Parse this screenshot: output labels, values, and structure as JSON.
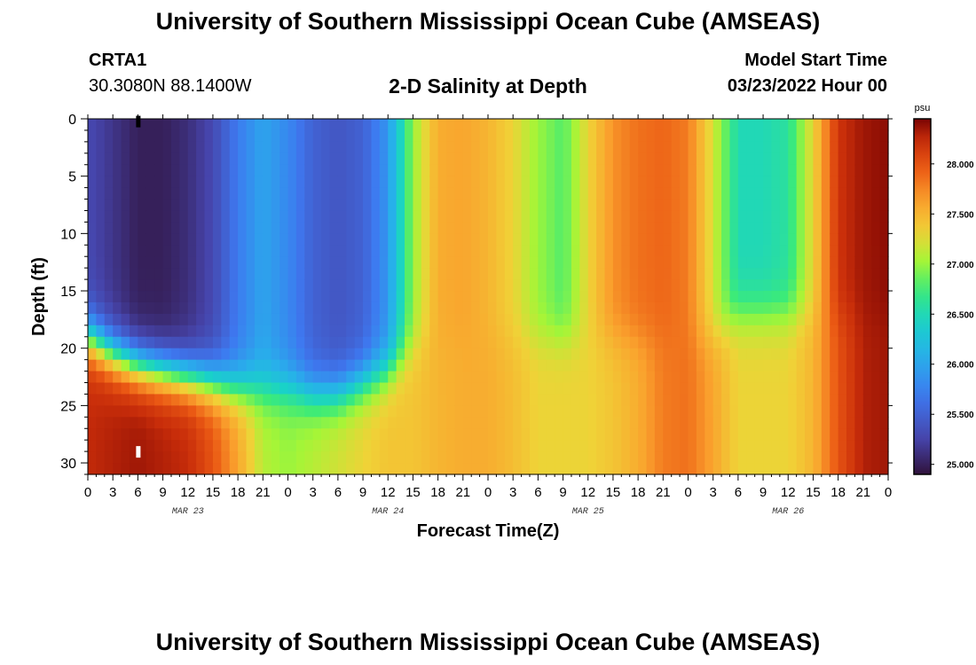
{
  "header": {
    "main_title": "University of Southern Mississippi Ocean Cube (AMSEAS)",
    "station_id": "CRTA1",
    "station_coords": "30.3080N  88.1400W",
    "subtitle": "2-D Salinity at Depth",
    "model_start_label": "Model Start Time",
    "model_start_value": "03/23/2022 Hour 00"
  },
  "footer": {
    "title": "University of Southern Mississippi Ocean Cube (AMSEAS)"
  },
  "chart_data": {
    "type": "heatmap",
    "title": "2-D Salinity at Depth",
    "xlabel": "Forecast Time(Z)",
    "ylabel": "Depth (ft)",
    "x_range_hours": [
      0,
      96
    ],
    "x_tick_hours": [
      0,
      3,
      6,
      9,
      12,
      15,
      18,
      21,
      24,
      27,
      30,
      33,
      36,
      39,
      42,
      45,
      48,
      51,
      54,
      57,
      60,
      63,
      66,
      69,
      72,
      75,
      78,
      81,
      84,
      87,
      90,
      93,
      96
    ],
    "x_tick_labels": [
      "0",
      "3",
      "6",
      "9",
      "12",
      "15",
      "18",
      "21",
      "0",
      "3",
      "6",
      "9",
      "12",
      "15",
      "18",
      "21",
      "0",
      "3",
      "6",
      "9",
      "12",
      "15",
      "18",
      "21",
      "0",
      "3",
      "6",
      "9",
      "12",
      "15",
      "18",
      "21",
      "0"
    ],
    "date_labels": [
      {
        "label": "MAR 23",
        "hour": 12
      },
      {
        "label": "MAR 24",
        "hour": 36
      },
      {
        "label": "MAR 25",
        "hour": 60
      },
      {
        "label": "MAR 26",
        "hour": 84
      }
    ],
    "ylim": [
      0,
      31
    ],
    "y_ticks": [
      0,
      5,
      10,
      15,
      20,
      25,
      30
    ],
    "y_tick_labels": [
      "0",
      "5",
      "10",
      "15",
      "20",
      "25",
      "30"
    ],
    "colorbar": {
      "unit": "psu",
      "min": 24.9,
      "max": 28.45,
      "ticks": [
        25.0,
        25.5,
        26.0,
        26.5,
        27.0,
        27.5,
        28.0
      ],
      "tick_labels": [
        "25.000",
        "25.500",
        "26.000",
        "26.500",
        "27.000",
        "27.500",
        "28.000"
      ]
    },
    "time_hours": [
      0,
      3,
      6,
      9,
      12,
      15,
      18,
      21,
      24,
      27,
      30,
      33,
      36,
      39,
      42,
      45,
      48,
      51,
      54,
      57,
      60,
      63,
      66,
      69,
      72,
      75,
      78,
      81,
      84,
      87,
      90,
      93,
      96
    ],
    "depth_ft": [
      0,
      2,
      4,
      6,
      8,
      10,
      12,
      14,
      16,
      18,
      20,
      22,
      24,
      26,
      28,
      30,
      31
    ],
    "salinity_surface_psu": [
      25.3,
      25.15,
      25.0,
      25.0,
      25.1,
      25.3,
      25.7,
      26.0,
      25.8,
      25.5,
      25.4,
      25.5,
      25.9,
      27.0,
      27.55,
      27.6,
      27.5,
      27.3,
      27.0,
      26.8,
      27.3,
      27.7,
      27.85,
      27.9,
      27.8,
      27.2,
      26.5,
      26.5,
      26.6,
      27.3,
      28.2,
      28.35,
      28.4
    ],
    "salinity_bottom_psu": [
      28.25,
      28.3,
      28.35,
      28.3,
      28.25,
      28.0,
      27.6,
      27.1,
      27.0,
      27.1,
      27.2,
      27.3,
      27.4,
      27.4,
      27.5,
      27.55,
      27.55,
      27.45,
      27.3,
      27.3,
      27.3,
      27.4,
      27.55,
      27.8,
      27.85,
      27.6,
      27.3,
      27.3,
      27.3,
      27.5,
      28.0,
      28.3,
      28.35
    ],
    "halocline_depth_ft": [
      19,
      20.5,
      21.5,
      22,
      22.5,
      23,
      23.5,
      23.5,
      23.5,
      24,
      24,
      23,
      22,
      20,
      19,
      19,
      19,
      19,
      19,
      19,
      19,
      19,
      19,
      19,
      19,
      19,
      17,
      17,
      17,
      17,
      17,
      17,
      17
    ],
    "markers": [
      {
        "hour": 6,
        "depth_ft": 0.2,
        "color": "#000000"
      },
      {
        "hour": 6,
        "depth_ft": 29,
        "color": "#ffffff"
      }
    ]
  }
}
